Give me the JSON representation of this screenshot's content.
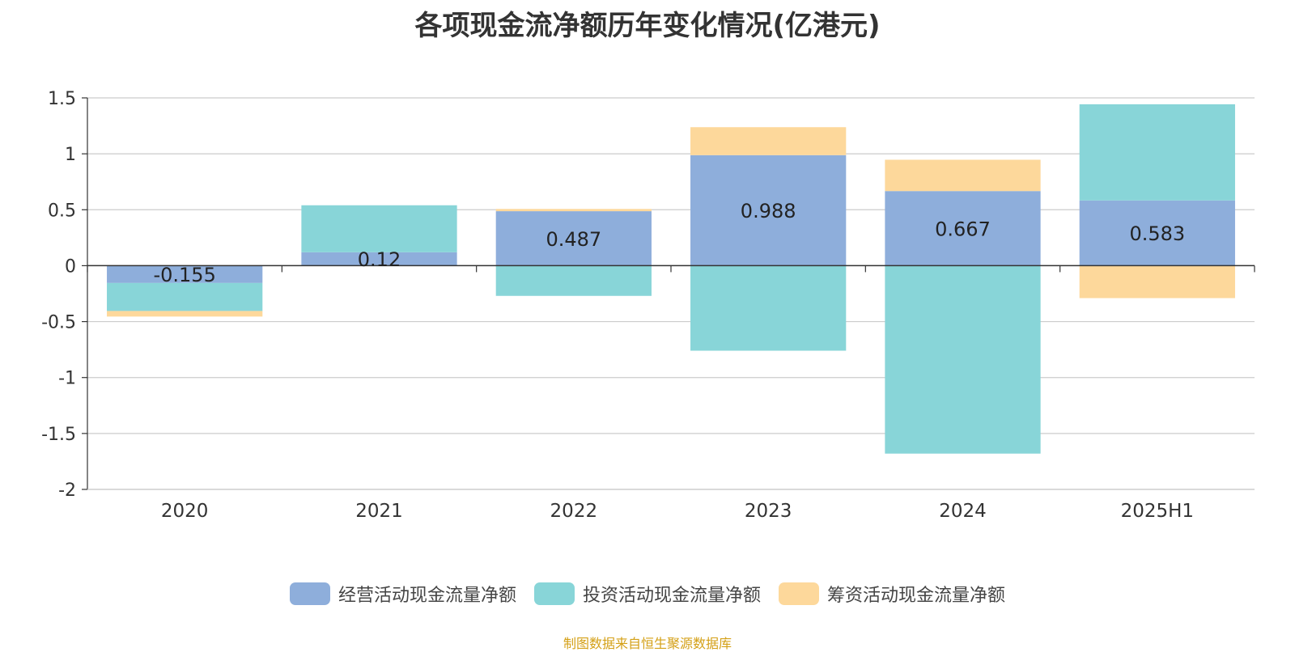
{
  "chart_data": {
    "type": "bar",
    "stacked": true,
    "title": "各项现金流净额历年变化情况(亿港元)",
    "categories": [
      "2020",
      "2021",
      "2022",
      "2023",
      "2024",
      "2025H1"
    ],
    "ylim": [
      -2,
      1.5
    ],
    "yticks": [
      1.5,
      1,
      0.5,
      0,
      -0.5,
      -1,
      -1.5,
      -2
    ],
    "ytick_labels": [
      "1.5",
      "1",
      "0.5",
      "0",
      "-0.5",
      "-1",
      "-1.5",
      "-2"
    ],
    "grid": true,
    "legend_position": "bottom",
    "series": [
      {
        "name": "经营活动现金流量净额",
        "color": "#8eaedb",
        "values": [
          -0.155,
          0.12,
          0.487,
          0.988,
          0.667,
          0.583
        ],
        "labels": [
          "-0.155",
          "0.12",
          "0.487",
          "0.988",
          "0.667",
          "0.583"
        ]
      },
      {
        "name": "投资活动现金流量净额",
        "color": "#88d5d8",
        "values": [
          -0.25,
          0.42,
          -0.27,
          -0.76,
          -1.68,
          0.86
        ]
      },
      {
        "name": "筹资活动现金流量净额",
        "color": "#fdd89b",
        "values": [
          -0.05,
          0.0,
          0.02,
          0.25,
          0.28,
          -0.29
        ]
      }
    ]
  },
  "source_text": "制图数据来自恒生聚源数据库"
}
